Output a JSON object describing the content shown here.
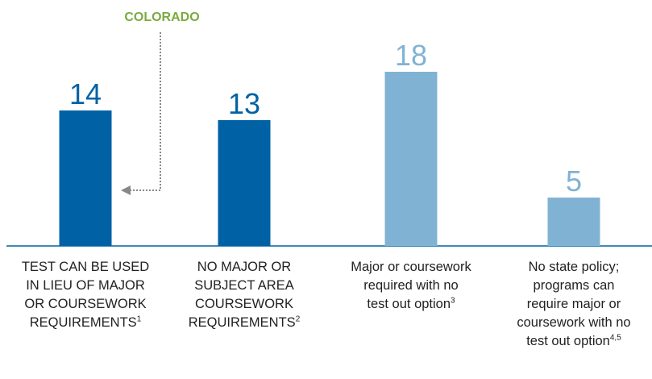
{
  "chart_data": {
    "type": "bar",
    "annotation": "COLORADO",
    "categories": [
      "TEST CAN BE USED\nIN LIEU OF MAJOR\nOR COURSEWORK\nREQUIREMENTS",
      "NO MAJOR OR\nSUBJECT AREA\nCOURSEWORK\nREQUIREMENTS",
      "Major or coursework\nrequired with no\ntest out option",
      "No state policy;\nprograms can\nrequire major or\ncoursework with no\ntest out option"
    ],
    "footnotes": [
      "1",
      "2",
      "3",
      "4,5"
    ],
    "values": [
      14,
      13,
      18,
      5
    ],
    "colors": [
      "#0062a4",
      "#0062a4",
      "#80b3d3",
      "#80b3d3"
    ],
    "annotation_color": "#79ab3f",
    "ylim": [
      0,
      25
    ]
  }
}
